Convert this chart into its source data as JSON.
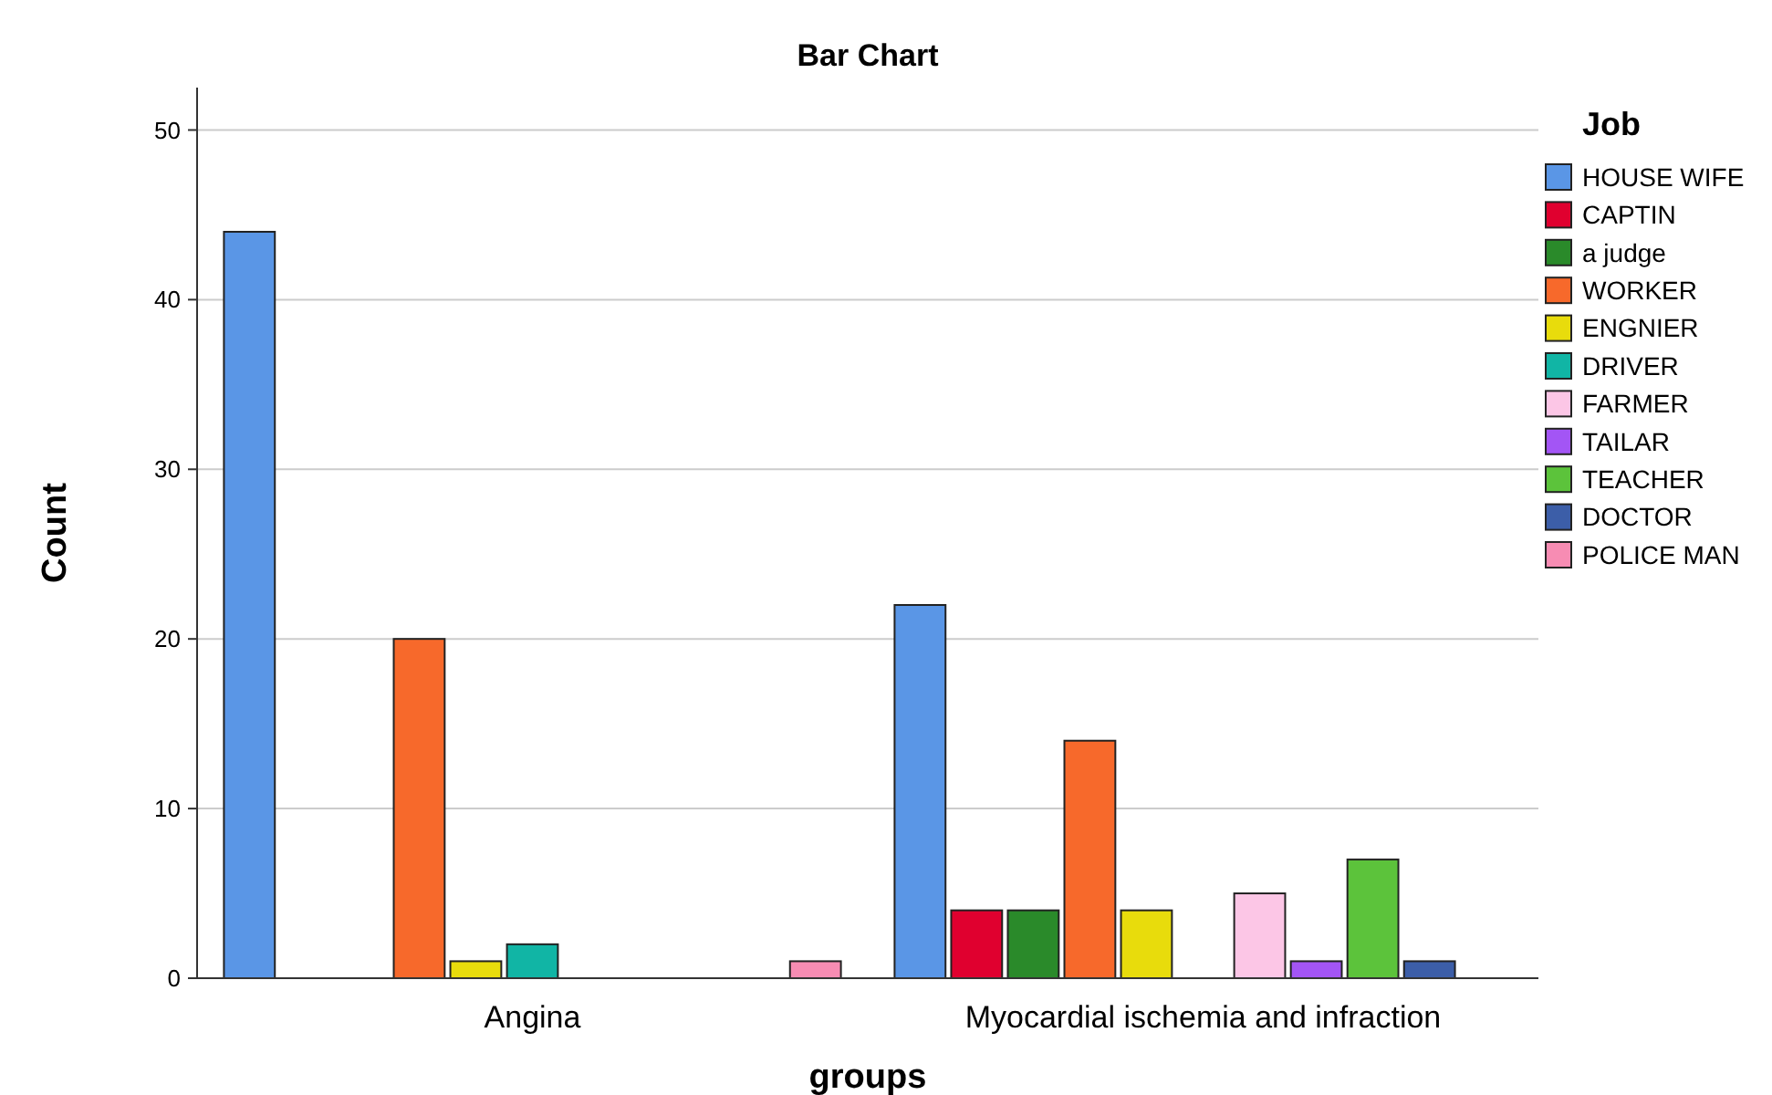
{
  "chart_data": {
    "type": "bar",
    "title": "Bar Chart",
    "xlabel": "groups",
    "ylabel": "Count",
    "legend_title": "Job",
    "legend": "right",
    "grid": "y",
    "categories": [
      "Angina",
      "Myocardial ischemia and infraction"
    ],
    "ylim": [
      0,
      52.5
    ],
    "yticks": [
      0,
      10,
      20,
      30,
      40,
      50
    ],
    "series": [
      {
        "name": "HOUSE WIFE",
        "color": "#5a96e6",
        "values": [
          44,
          22
        ]
      },
      {
        "name": "CAPTIN",
        "color": "#e0002f",
        "values": [
          0,
          4
        ]
      },
      {
        "name": "a judge",
        "color": "#2a8a2a",
        "values": [
          0,
          4
        ]
      },
      {
        "name": "WORKER",
        "color": "#f7692b",
        "values": [
          20,
          14
        ]
      },
      {
        "name": "ENGNIER",
        "color": "#e8dc0c",
        "values": [
          1,
          4
        ]
      },
      {
        "name": "DRIVER",
        "color": "#11b5a5",
        "values": [
          2,
          0
        ]
      },
      {
        "name": "FARMER",
        "color": "#fcc6e6",
        "values": [
          0,
          5
        ]
      },
      {
        "name": "TAILAR",
        "color": "#a355f5",
        "values": [
          0,
          1
        ]
      },
      {
        "name": "TEACHER",
        "color": "#5cc33b",
        "values": [
          0,
          7
        ]
      },
      {
        "name": "DOCTOR",
        "color": "#3c5ea8",
        "values": [
          0,
          1
        ]
      },
      {
        "name": "POLICE MAN",
        "color": "#f78cb3",
        "values": [
          1,
          0
        ]
      }
    ]
  }
}
